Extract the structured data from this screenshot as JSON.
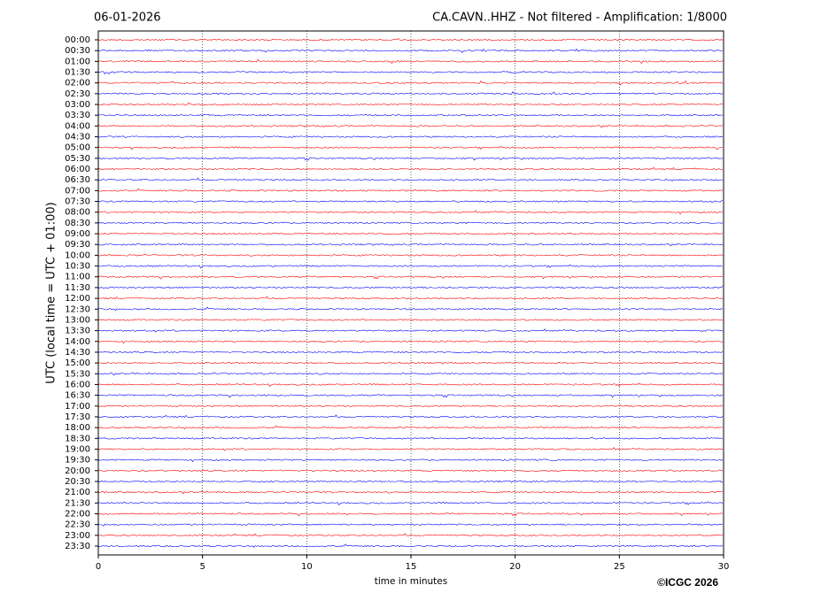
{
  "chart_data": {
    "type": "helicorder",
    "title": "06-01-2026",
    "subtitle": "CA.CAVN..HHZ - Not filtered - Amplification: 1/8000",
    "ylabel": "UTC (local time = UTC + 01:00)",
    "xlabel": "time in minutes",
    "copyright": "©ICGC 2026",
    "xlim": [
      0,
      30
    ],
    "xticks": [
      0,
      5,
      10,
      15,
      20,
      25,
      30
    ],
    "grid": true,
    "colors": [
      "#ff0000",
      "#0000ff"
    ],
    "categories": [
      "00:00",
      "00:30",
      "01:00",
      "01:30",
      "02:00",
      "02:30",
      "03:00",
      "03:30",
      "04:00",
      "04:30",
      "05:00",
      "05:30",
      "06:00",
      "06:30",
      "07:00",
      "07:30",
      "08:00",
      "08:30",
      "09:00",
      "09:30",
      "10:00",
      "10:30",
      "11:00",
      "11:30",
      "12:00",
      "12:30",
      "13:00",
      "13:30",
      "14:00",
      "14:30",
      "15:00",
      "15:30",
      "16:00",
      "16:30",
      "17:00",
      "17:30",
      "18:00",
      "18:30",
      "19:00",
      "19:30",
      "20:00",
      "20:30",
      "21:00",
      "21:30",
      "22:00",
      "22:30",
      "23:00",
      "23:30"
    ]
  }
}
